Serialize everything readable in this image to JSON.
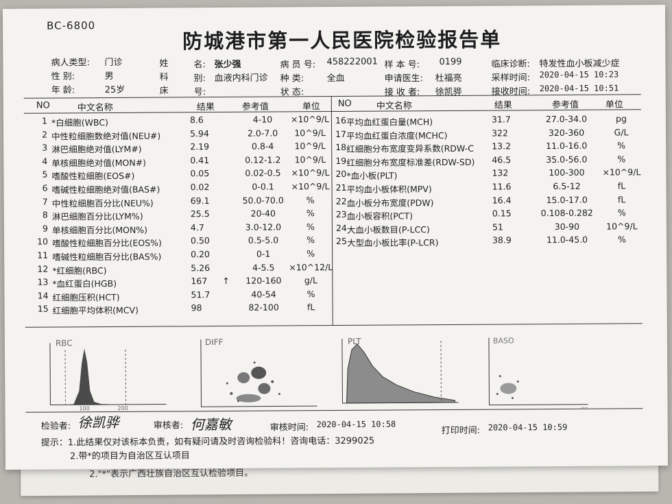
{
  "model": "BC-6800",
  "title": "防城港市第一人民医院检验报告单",
  "patient": {
    "type_label": "病人类型:",
    "type": "门诊",
    "name_label1": "姓",
    "name_label2": "名:",
    "name": "张少强",
    "record_label": "病 员 号:",
    "record": "458222001",
    "sample_label": "样 本 号:",
    "sample": "0199",
    "diag_label": "临床诊断:",
    "diag": "特发性血小板减少症",
    "sex_label": "性    别:",
    "sex": "男",
    "dept_label1": "科",
    "dept_label2": "别:",
    "dept": "血液内科门诊",
    "kind_label": "种    类:",
    "kind": "全血",
    "doctor_label": "申请医生:",
    "doctor": "杜福亮",
    "collect_label": "采样时间:",
    "collect": "2020-04-15 10:23",
    "age_label": "年    龄:",
    "age": "25岁",
    "bed_label1": "床",
    "bed_label2": "号:",
    "state_label": "状    态:",
    "receiver_label": "接 收 者:",
    "receiver": "徐凯骅",
    "receive_label": "接收时间:",
    "receive": "2020-04-15 10:51"
  },
  "headers": {
    "no": "NO",
    "name": "中文名称",
    "result": "结果",
    "ref": "参考值",
    "unit": "单位"
  },
  "left_rows": [
    {
      "no": "1",
      "name": "*白细胞(WBC)",
      "result": "8.6",
      "flag": "",
      "ref": "4-10",
      "unit": "×10^9/L"
    },
    {
      "no": "2",
      "name": "中性粒细胞数绝对值(NEU#)",
      "result": "5.94",
      "flag": "",
      "ref": "2.0-7.0",
      "unit": "10^9/L"
    },
    {
      "no": "3",
      "name": "淋巴细胞绝对值(LYM#)",
      "result": "2.19",
      "flag": "",
      "ref": "0.8-4",
      "unit": "10^9/L"
    },
    {
      "no": "4",
      "name": "单核细胞绝对值(MON#)",
      "result": "0.41",
      "flag": "",
      "ref": "0.12-1.2",
      "unit": "10^9/L"
    },
    {
      "no": "5",
      "name": "嗜酸性粒细胞(EOS#)",
      "result": "0.05",
      "flag": "",
      "ref": "0.02-0.5",
      "unit": "×10^9/L"
    },
    {
      "no": "6",
      "name": "嗜碱性粒细胞绝对值(BAS#)",
      "result": "0.02",
      "flag": "",
      "ref": "0-0.1",
      "unit": "×10^9/L"
    },
    {
      "no": "7",
      "name": "中性粒细胞百分比(NEU%)",
      "result": "69.1",
      "flag": "",
      "ref": "50.0-70.0",
      "unit": "%"
    },
    {
      "no": "8",
      "name": "淋巴细胞百分比(LYM%)",
      "result": "25.5",
      "flag": "",
      "ref": "20-40",
      "unit": "%"
    },
    {
      "no": "9",
      "name": "单核细胞百分比(MON%)",
      "result": "4.7",
      "flag": "",
      "ref": "3.0-12.0",
      "unit": "%"
    },
    {
      "no": "10",
      "name": "嗜酸性粒细胞百分比(EOS%)",
      "result": "0.50",
      "flag": "",
      "ref": "0.5-5.0",
      "unit": "%"
    },
    {
      "no": "11",
      "name": "嗜碱性粒细胞百分比(BAS%)",
      "result": "0.20",
      "flag": "",
      "ref": "0-1",
      "unit": "%"
    },
    {
      "no": "12",
      "name": "*红细胞(RBC)",
      "result": "5.26",
      "flag": "",
      "ref": "4-5.5",
      "unit": "×10^12/L"
    },
    {
      "no": "13",
      "name": "*血红蛋白(HGB)",
      "result": "167",
      "flag": "↑",
      "ref": "120-160",
      "unit": "g/L"
    },
    {
      "no": "14",
      "name": "红细胞压积(HCT)",
      "result": "51.7",
      "flag": "",
      "ref": "40-54",
      "unit": "%"
    },
    {
      "no": "15",
      "name": "红细胞平均体积(MCV)",
      "result": "98",
      "flag": "",
      "ref": "82-100",
      "unit": "fL"
    }
  ],
  "right_rows": [
    {
      "no": "16",
      "name": "平均血红蛋白量(MCH)",
      "result": "31.7",
      "ref": "27.0-34.0",
      "unit": "pg"
    },
    {
      "no": "17",
      "name": "平均血红蛋白浓度(MCHC)",
      "result": "322",
      "ref": "320-360",
      "unit": "G/L"
    },
    {
      "no": "18",
      "name": "红细胞分布宽度变异系数(RDW-C",
      "result": "13.2",
      "ref": "11.0-16.0",
      "unit": "%"
    },
    {
      "no": "19",
      "name": "红细胞分布宽度标准差(RDW-SD)",
      "result": "46.5",
      "ref": "35.0-56.0",
      "unit": "%"
    },
    {
      "no": "20",
      "name": "*血小板(PLT)",
      "result": "132",
      "ref": "100-300",
      "unit": "×10^9/L"
    },
    {
      "no": "21",
      "name": "平均血小板体积(MPV)",
      "result": "11.6",
      "ref": "6.5-12",
      "unit": "fL"
    },
    {
      "no": "22",
      "name": "血小板分布宽度(PDW)",
      "result": "16.4",
      "ref": "15.0-17.0",
      "unit": "fL"
    },
    {
      "no": "23",
      "name": "血小板容积(PCT)",
      "result": "0.15",
      "ref": "0.108-0.282",
      "unit": "%"
    },
    {
      "no": "24",
      "name": "大血小板数目(P-LCC)",
      "result": "51",
      "ref": "30-90",
      "unit": "10^9/L"
    },
    {
      "no": "25",
      "name": "大型血小板比率(P-LCR)",
      "result": "38.9",
      "ref": "11.0-45.0",
      "unit": "%"
    }
  ],
  "histograms": {
    "rbc": "RBC",
    "rbc_t1": "100",
    "rbc_t2": "200",
    "diff": "DIFF",
    "plt": "PLT",
    "baso": "BASO",
    "baso_t": "SS"
  },
  "footer": {
    "tester_label": "检验者:",
    "tester": "徐凯骅",
    "reviewer_label": "审核者:",
    "reviewer": "何嘉敏",
    "review_time_label": "审核时间:",
    "review_time": "2020-04-15 10:58",
    "print_label": "打印时间:",
    "print_time": "2020-04-15 10:59",
    "note1": "提示：1.此结果仅对该标本负责，如有疑问请及时咨询检验科！咨询电话：3299025",
    "note2": "2.带*的项目为自治区互认项目"
  },
  "under_note": "2.\"*\"表示广西壮族自治区互认检验项目。"
}
